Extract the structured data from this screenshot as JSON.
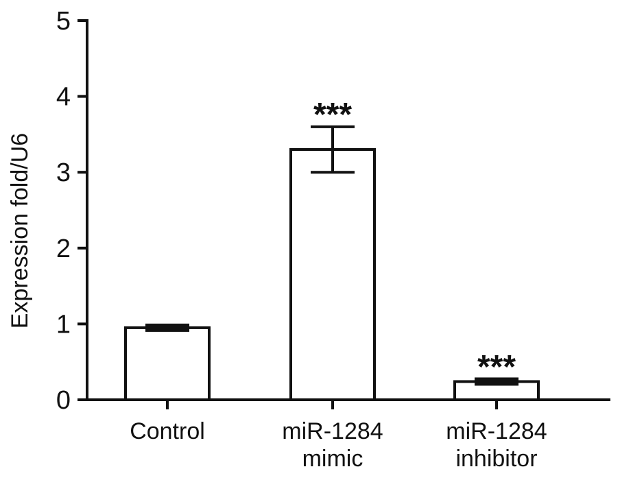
{
  "chart_data": {
    "type": "bar",
    "ylabel": "Expression fold/U6",
    "xlabel": "",
    "ylim": [
      0,
      5
    ],
    "yticks": [
      "0",
      "1",
      "2",
      "3",
      "4",
      "5"
    ],
    "categories": [
      [
        "Control"
      ],
      [
        "miR-1284",
        "mimic"
      ],
      [
        "miR-1284",
        "inhibitor"
      ]
    ],
    "values": [
      0.95,
      3.3,
      0.24
    ],
    "errors": [
      0.03,
      0.3,
      0.03
    ],
    "significance": [
      "",
      "***",
      "***"
    ],
    "grid": false,
    "legend": "none",
    "bar_fill": "#ffffff",
    "bar_stroke": "#111111"
  }
}
